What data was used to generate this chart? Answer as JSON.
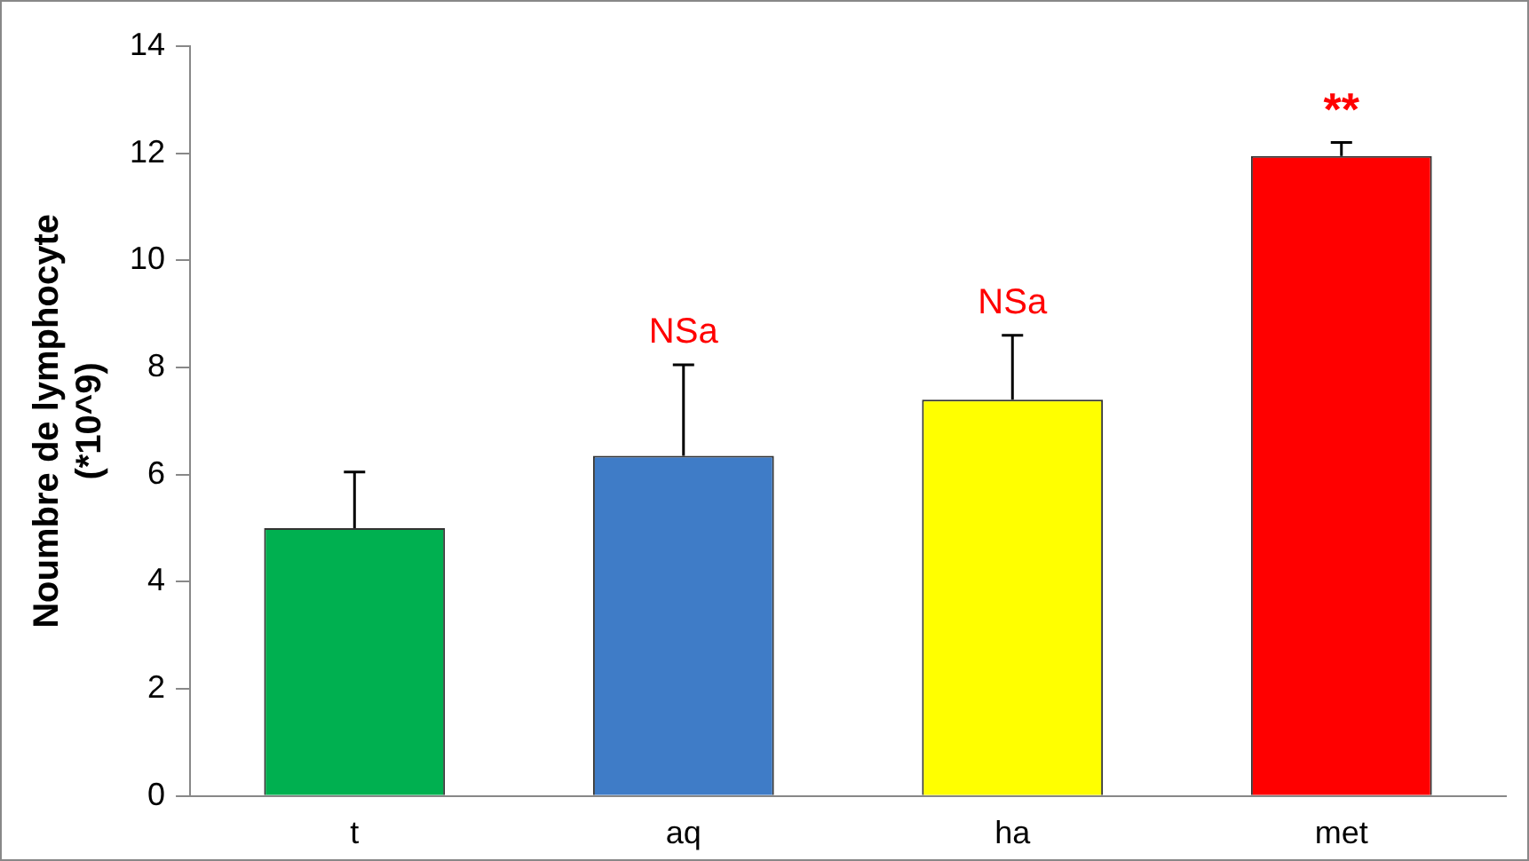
{
  "chart_data": {
    "type": "bar",
    "ylabel": "Noumbre de lymphocyte\n(*10^9)",
    "categories": [
      "t",
      "aq",
      "ha",
      "met"
    ],
    "values": [
      5,
      6.35,
      7.4,
      11.95
    ],
    "colors": [
      "#00b050",
      "#3f7cc7",
      "#ffff00",
      "#ff0000"
    ],
    "errors": [
      [
        5,
        6.05
      ],
      [
        6.35,
        8.05
      ],
      [
        7.4,
        8.6
      ],
      [
        11.95,
        12.2
      ]
    ],
    "ylim": [
      0,
      14
    ],
    "yticks": [
      0,
      2,
      4,
      6,
      8,
      10,
      12,
      14
    ],
    "grid": false,
    "legend": false,
    "annotations": [
      {
        "text": "NSa",
        "x": "aq",
        "y": 8.05
      },
      {
        "text": "NSa",
        "x": "ha",
        "y": 8.6
      },
      {
        "text": "**",
        "x": "met",
        "y": 12.2
      }
    ]
  }
}
